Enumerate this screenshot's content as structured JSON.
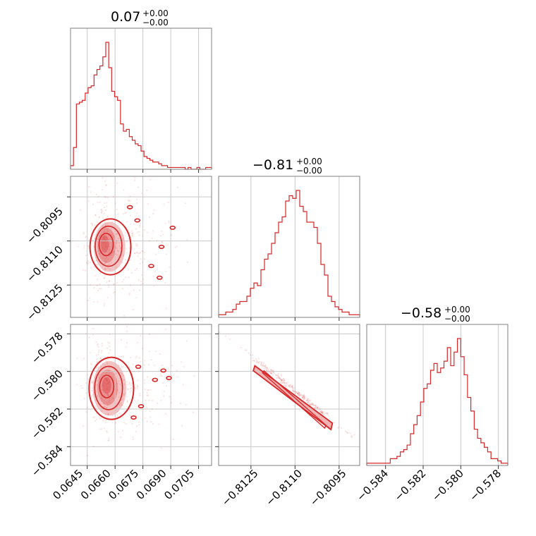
{
  "chart_data": {
    "type": "corner",
    "color": "#d62728",
    "params": [
      {
        "range": [
          0.0636,
          0.0712
        ],
        "ticks": [
          0.0645,
          0.066,
          0.0675,
          0.069,
          0.0705
        ],
        "tick_labels": [
          "0.0645",
          "0.0660",
          "0.0675",
          "0.0690",
          "0.0705"
        ]
      },
      {
        "range": [
          -0.8136,
          -0.8088
        ],
        "ticks": [
          -0.8125,
          -0.811,
          -0.8095
        ],
        "tick_labels": [
          "−0.8125",
          "−0.8110",
          "−0.8095"
        ]
      },
      {
        "range": [
          -0.585,
          -0.5775
        ],
        "ticks": [
          -0.584,
          -0.582,
          -0.58,
          -0.578
        ],
        "tick_labels": [
          "−0.584",
          "−0.582",
          "−0.580",
          "−0.578"
        ]
      }
    ],
    "titles": [
      {
        "main": "0.07",
        "up": "+0.00",
        "down": "−0.00"
      },
      {
        "main": "−0.81",
        "up": "+0.00",
        "down": "−0.00"
      },
      {
        "main": "−0.58",
        "up": "+0.00",
        "down": "−0.00"
      }
    ],
    "histograms": [
      {
        "param": 0,
        "counts": [
          2,
          12,
          36,
          37,
          38,
          42,
          45,
          46,
          52,
          55,
          57,
          62,
          70,
          56,
          43,
          40,
          38,
          25,
          21,
          22,
          18,
          16,
          14,
          13,
          10,
          7,
          6,
          5,
          4,
          4,
          3,
          2,
          2,
          1,
          1,
          1,
          1,
          1,
          1,
          0,
          1,
          0,
          0,
          1,
          0,
          0,
          1,
          1
        ]
      },
      {
        "param": 1,
        "counts": [
          1,
          1,
          2,
          2,
          3,
          5,
          6,
          6,
          8,
          11,
          13,
          12,
          18,
          22,
          24,
          28,
          32,
          36,
          38,
          44,
          46,
          45,
          48,
          42,
          40,
          36,
          36,
          34,
          28,
          20,
          16,
          8,
          6,
          4,
          3,
          2,
          2,
          1,
          1,
          1
        ]
      },
      {
        "param": 2,
        "counts": [
          1,
          1,
          1,
          1,
          1,
          1,
          1,
          3,
          3,
          4,
          6,
          7,
          9,
          14,
          18,
          22,
          28,
          34,
          36,
          42,
          45,
          41,
          43,
          46,
          52,
          44,
          50,
          56,
          48,
          40,
          30,
          24,
          16,
          12,
          10,
          8,
          6,
          3,
          3,
          2,
          1,
          1
        ]
      }
    ]
  }
}
